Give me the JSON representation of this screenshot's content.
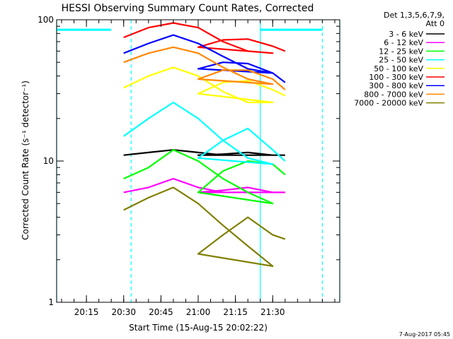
{
  "chart_data": {
    "type": "line",
    "title": "HESSI Observing Summary Count Rates, Corrected",
    "xlabel": "Start Time (15-Aug-15 20:02:22)",
    "ylabel": "Corrected Count Rate (s⁻¹ detector⁻¹)",
    "y_scale": "log",
    "ylim": [
      1,
      100
    ],
    "xlim_minutes": [
      20.03,
      21.57
    ],
    "x_ticks": [
      "20:15",
      "20:30",
      "20:45",
      "21:00",
      "21:15",
      "21:30"
    ],
    "y_ticks": [
      "1",
      "10",
      "100"
    ],
    "legend_header": [
      "Det 1,3,5,6,7,9,",
      "Att 0"
    ],
    "legend_placement": "right",
    "series": [
      {
        "name": "3 - 6 keV",
        "color": "#000000",
        "x": [
          20.3,
          20.4,
          20.5,
          20.6,
          20.7,
          20.8,
          20.9,
          21.0,
          21.1,
          21.2,
          21.3,
          21.35
        ],
        "values": [
          11,
          11.5,
          12,
          11.5,
          11,
          11,
          11,
          11,
          11.2,
          11.5,
          11,
          11
        ]
      },
      {
        "name": "6 - 12 keV",
        "color": "#ff00ff",
        "x": [
          20.3,
          20.4,
          20.5,
          20.6,
          20.7,
          20.8,
          20.9,
          21.0,
          21.1,
          21.2,
          21.3,
          21.35
        ],
        "values": [
          6,
          6.5,
          7.5,
          6.5,
          6,
          6,
          6,
          6,
          6.2,
          6.5,
          6,
          6
        ]
      },
      {
        "name": "12 - 25 keV",
        "color": "#00ff00",
        "x": [
          20.3,
          20.4,
          20.5,
          20.6,
          20.7,
          20.8,
          20.9,
          21.0,
          21.1,
          21.2,
          21.3,
          21.35
        ],
        "values": [
          7.5,
          9,
          12,
          10,
          7.5,
          6,
          5,
          6,
          8.5,
          10,
          9.5,
          8
        ]
      },
      {
        "name": "25 - 50 keV",
        "color": "#00ffff",
        "x": [
          20.3,
          20.4,
          20.5,
          20.6,
          20.7,
          20.8,
          20.9,
          21.0,
          21.1,
          21.2,
          21.3,
          21.35
        ],
        "values": [
          15,
          20,
          26,
          20,
          14,
          10.5,
          9.5,
          10.5,
          14,
          17,
          12,
          10
        ]
      },
      {
        "name": "50 - 100 keV",
        "color": "#ffff00",
        "x": [
          20.3,
          20.4,
          20.5,
          20.6,
          20.7,
          20.8,
          20.9,
          21.0,
          21.1,
          21.2,
          21.3,
          21.35
        ],
        "values": [
          33,
          40,
          46,
          40,
          31,
          26,
          26,
          30,
          36,
          37,
          32,
          29
        ]
      },
      {
        "name": "100 - 300 keV",
        "color": "#ff0000",
        "x": [
          20.3,
          20.4,
          20.5,
          20.6,
          20.7,
          20.8,
          20.9,
          21.0,
          21.1,
          21.2,
          21.3,
          21.35
        ],
        "values": [
          75,
          88,
          95,
          88,
          70,
          60,
          58,
          64,
          72,
          73,
          65,
          60
        ]
      },
      {
        "name": "300 - 800 keV",
        "color": "#0000ff",
        "x": [
          20.3,
          20.4,
          20.5,
          20.6,
          20.7,
          20.8,
          20.9,
          21.0,
          21.1,
          21.2,
          21.3,
          21.35
        ],
        "values": [
          58,
          68,
          78,
          68,
          55,
          45,
          42,
          45,
          50,
          49,
          42,
          36
        ]
      },
      {
        "name": "800 - 7000 keV",
        "color": "#ff8800",
        "x": [
          20.3,
          20.4,
          20.5,
          20.6,
          20.7,
          20.8,
          20.9,
          21.0,
          21.1,
          21.2,
          21.3,
          21.35
        ],
        "values": [
          50,
          58,
          64,
          58,
          46,
          38,
          35,
          38,
          44,
          44,
          38,
          32
        ]
      },
      {
        "name": "7000 - 20000 keV",
        "color": "#808000",
        "x": [
          20.3,
          20.4,
          20.5,
          20.6,
          20.7,
          20.8,
          20.9,
          21.0,
          21.1,
          21.2,
          21.3,
          21.35
        ],
        "values": [
          4.5,
          5.5,
          6.5,
          5,
          3.5,
          2.5,
          1.8,
          2.2,
          3,
          4,
          3,
          2.8
        ]
      }
    ],
    "reference_lines": [
      {
        "kind": "solid",
        "color": "#00ffff",
        "x": [
          20.03,
          21.25,
          21.57
        ]
      },
      {
        "kind": "dashed",
        "color": "#00ffff",
        "x": [
          20.33,
          21.5
        ]
      }
    ],
    "saturation_bars": [
      {
        "color": "#00ffff",
        "y": 85,
        "x_from": 20.03,
        "x_to": 20.25
      },
      {
        "color": "#00ffff",
        "y": 85,
        "x_from": 21.25,
        "x_to": 21.5
      }
    ],
    "footer_stamp": "7-Aug-2017 05:45"
  }
}
